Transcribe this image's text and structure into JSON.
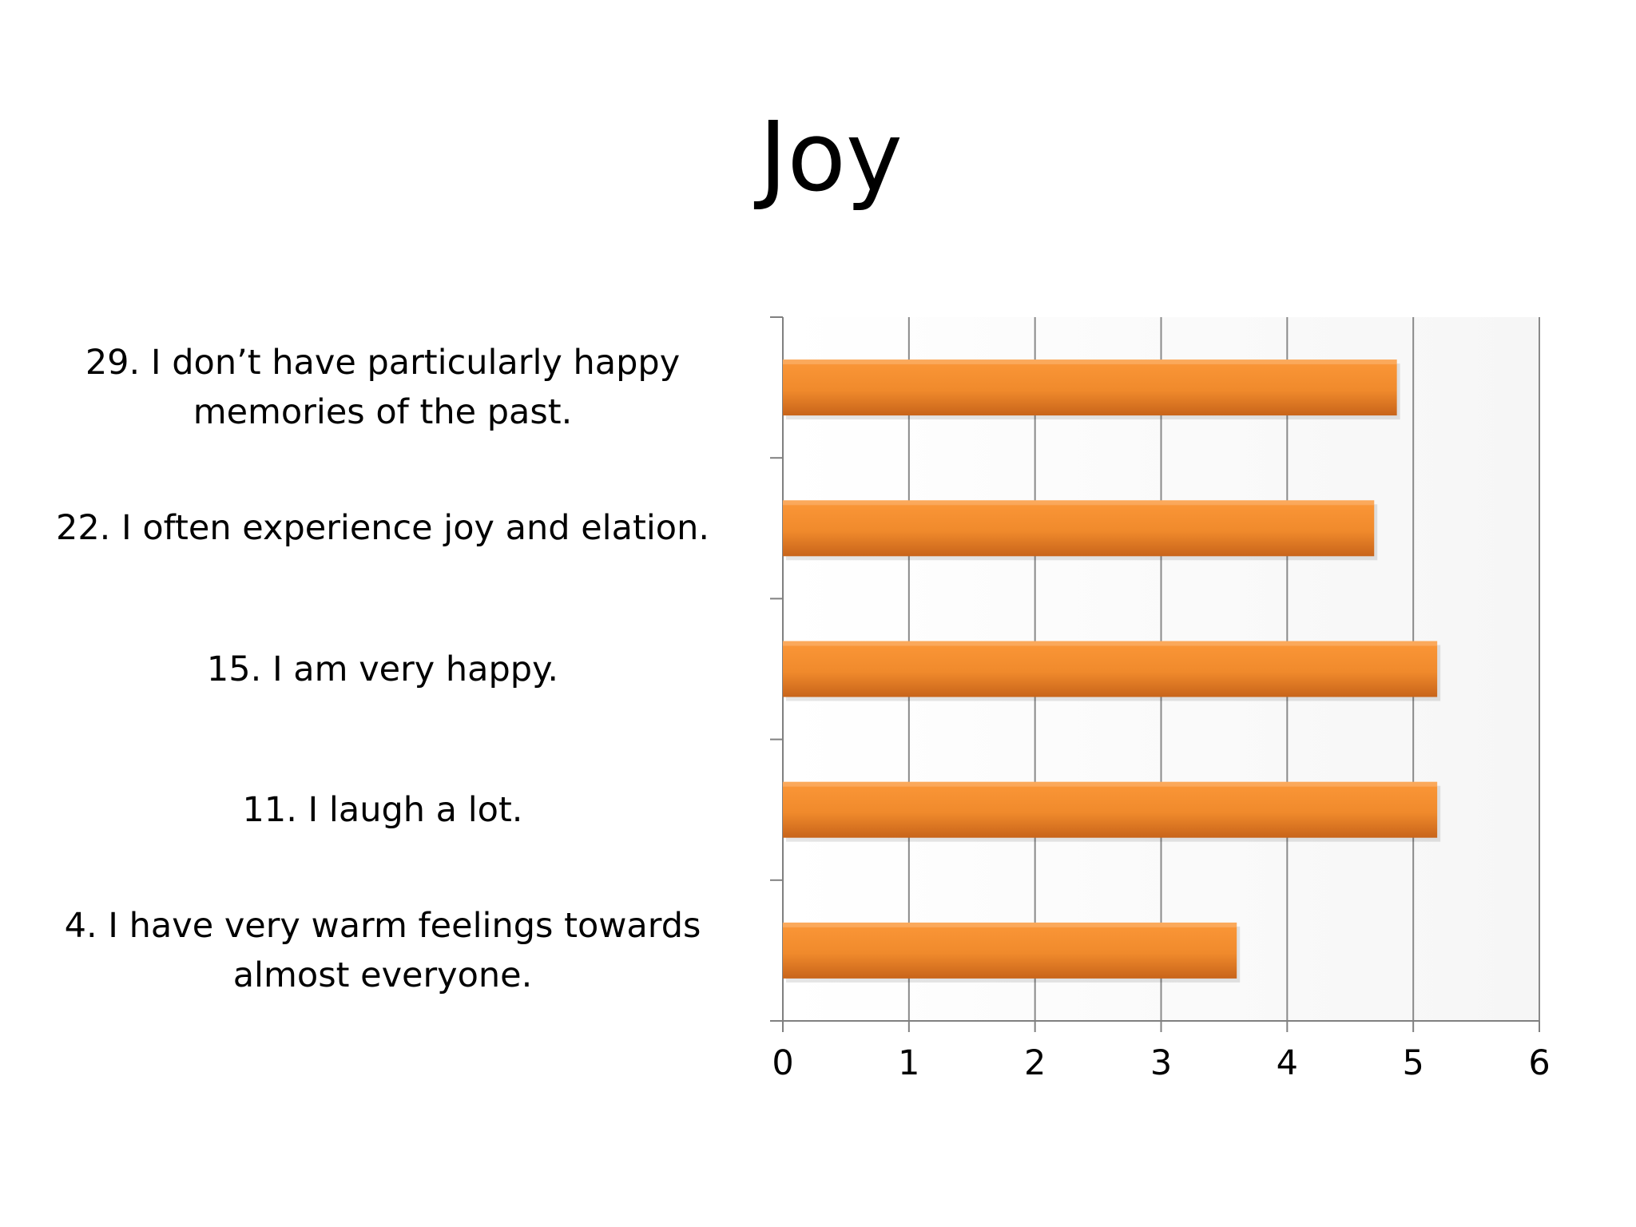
{
  "title": "Joy",
  "chart_data": {
    "type": "bar",
    "orientation": "horizontal",
    "title": "Joy",
    "xlabel": "",
    "ylabel": "",
    "categories": [
      "29. I don’t have particularly happy memories of the past.",
      "22. I often experience joy and elation.",
      "15. I am very happy.",
      "11. I laugh a lot.",
      "4. I have very warm feelings towards almost everyone."
    ],
    "category_lines": [
      [
        "29. I don’t have particularly happy",
        "memories of the past."
      ],
      [
        "22. I often experience joy and elation."
      ],
      [
        "15. I am very happy."
      ],
      [
        "11. I laugh a lot."
      ],
      [
        "4. I have very warm feelings towards",
        "almost everyone."
      ]
    ],
    "values": [
      4.87,
      4.69,
      5.19,
      5.19,
      3.6
    ],
    "xlim": [
      0,
      6
    ],
    "ticks": [
      "0",
      "1",
      "2",
      "3",
      "4",
      "5",
      "6"
    ],
    "grid": true,
    "legend": "none",
    "colors": {
      "bar_top": "#fb9738",
      "bar_mid": "#f08a2c",
      "bar_bottom": "#c8641a",
      "grid": "#8a8a8a",
      "axis": "#808080"
    }
  }
}
